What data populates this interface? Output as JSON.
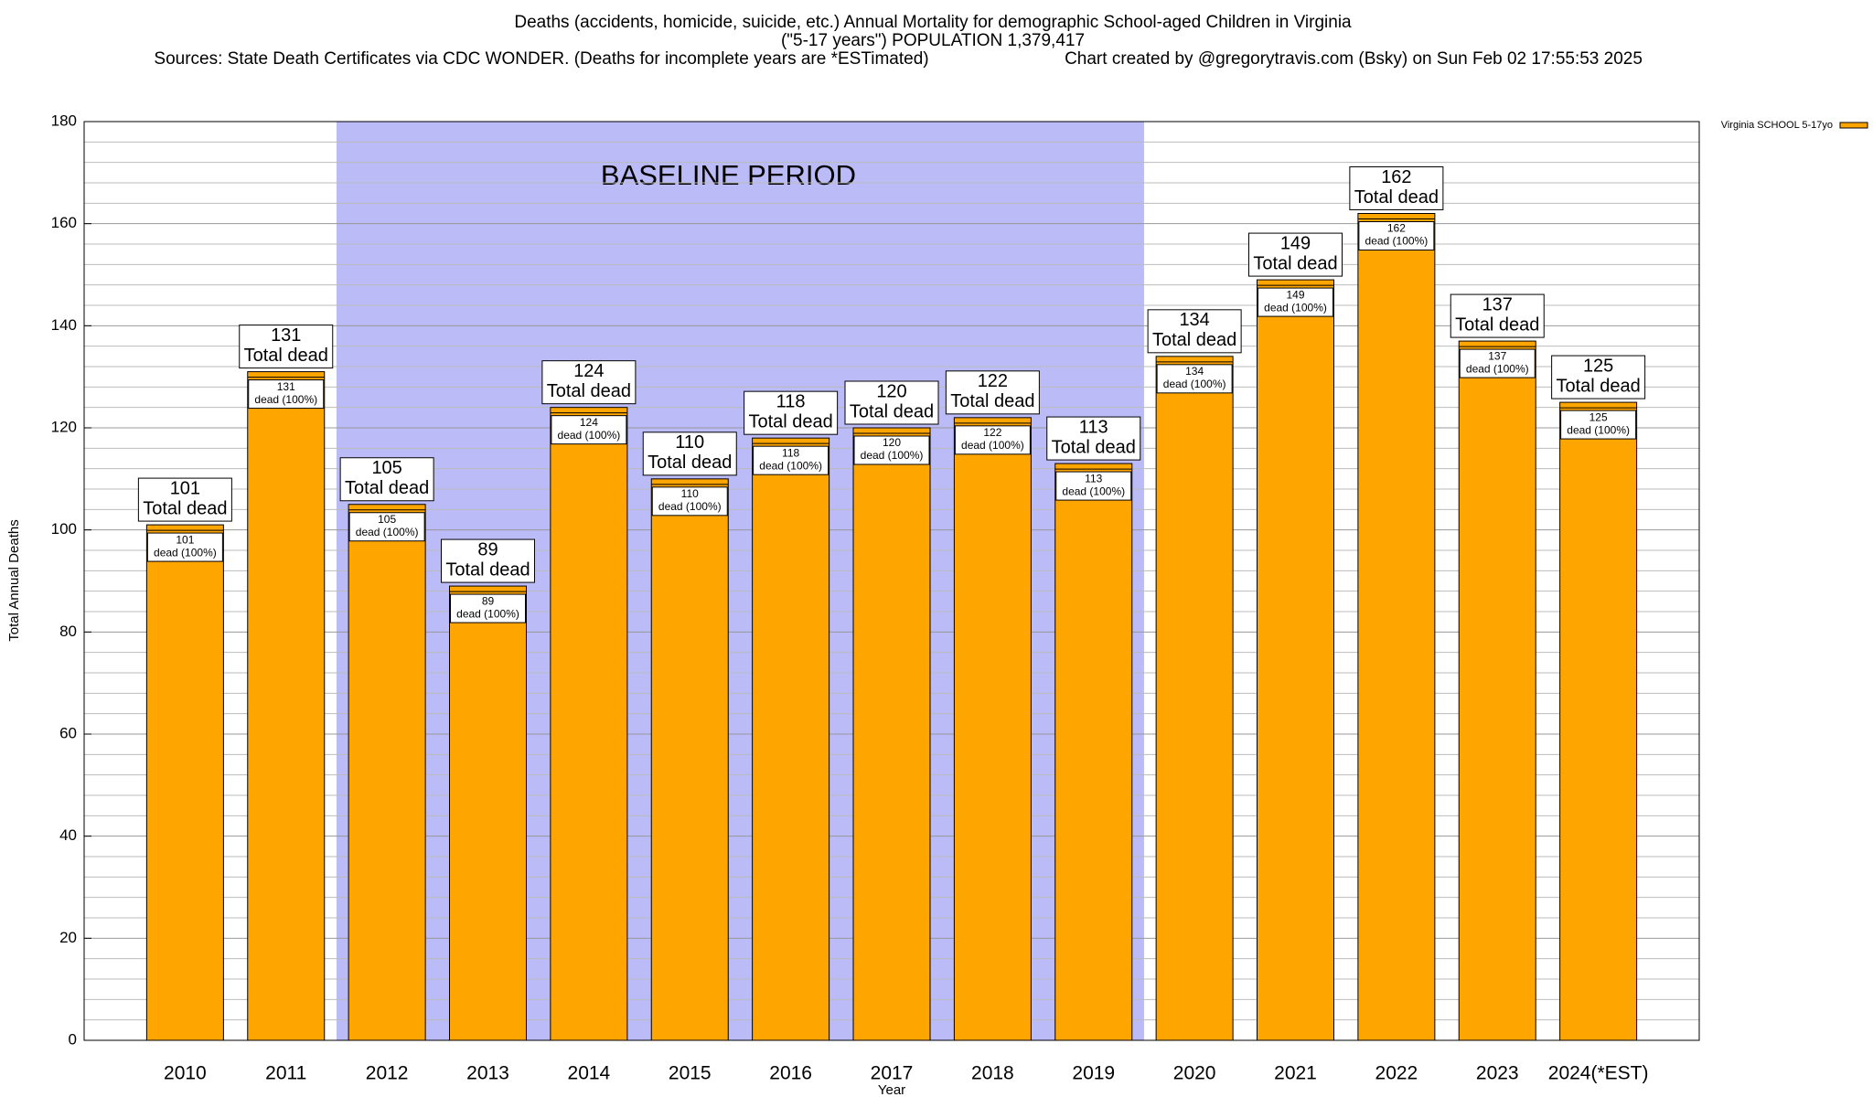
{
  "chart_data": {
    "type": "bar",
    "title": "Deaths (accidents, homicide, suicide, etc.) Annual Mortality for demographic School-aged Children in Virginia",
    "subtitle": "(\"5-17 years\") POPULATION 1,379,417",
    "sources": "Sources: State Death Certificates via CDC WONDER. (Deaths for incomplete years are *ESTimated)",
    "credit": "Chart created by @gregorytravis.com (Bsky) on Sun Feb 02 17:55:53 2025",
    "xlabel": "Year",
    "ylabel": "Total Annual Deaths",
    "categories": [
      "2010",
      "2011",
      "2012",
      "2013",
      "2014",
      "2015",
      "2016",
      "2017",
      "2018",
      "2019",
      "2020",
      "2021",
      "2022",
      "2023",
      "2024(*EST)"
    ],
    "series": [
      {
        "name": "Virginia SCHOOL 5-17yo",
        "color": "#ffa500",
        "values": [
          101,
          131,
          105,
          89,
          124,
          110,
          118,
          120,
          122,
          113,
          134,
          149,
          162,
          137,
          125
        ]
      }
    ],
    "total_label": "Total dead",
    "segment_label": "dead (100%)",
    "shaded_region": {
      "label": "BASELINE PERIOD",
      "from": "2012",
      "to": "2019",
      "color": "#bbbbf8"
    },
    "ylim": [
      0,
      180
    ],
    "yticks": [
      0,
      20,
      40,
      60,
      80,
      100,
      120,
      140,
      160,
      180
    ],
    "yminorticks": [
      4,
      8,
      12,
      16,
      24,
      28,
      32,
      36,
      44,
      48,
      52,
      56,
      64,
      68,
      72,
      76,
      84,
      88,
      92,
      96,
      104,
      108,
      112,
      116,
      124,
      128,
      132,
      136,
      144,
      148,
      152,
      156,
      164,
      168,
      172,
      176
    ],
    "grid": true,
    "legend": "top-right"
  }
}
